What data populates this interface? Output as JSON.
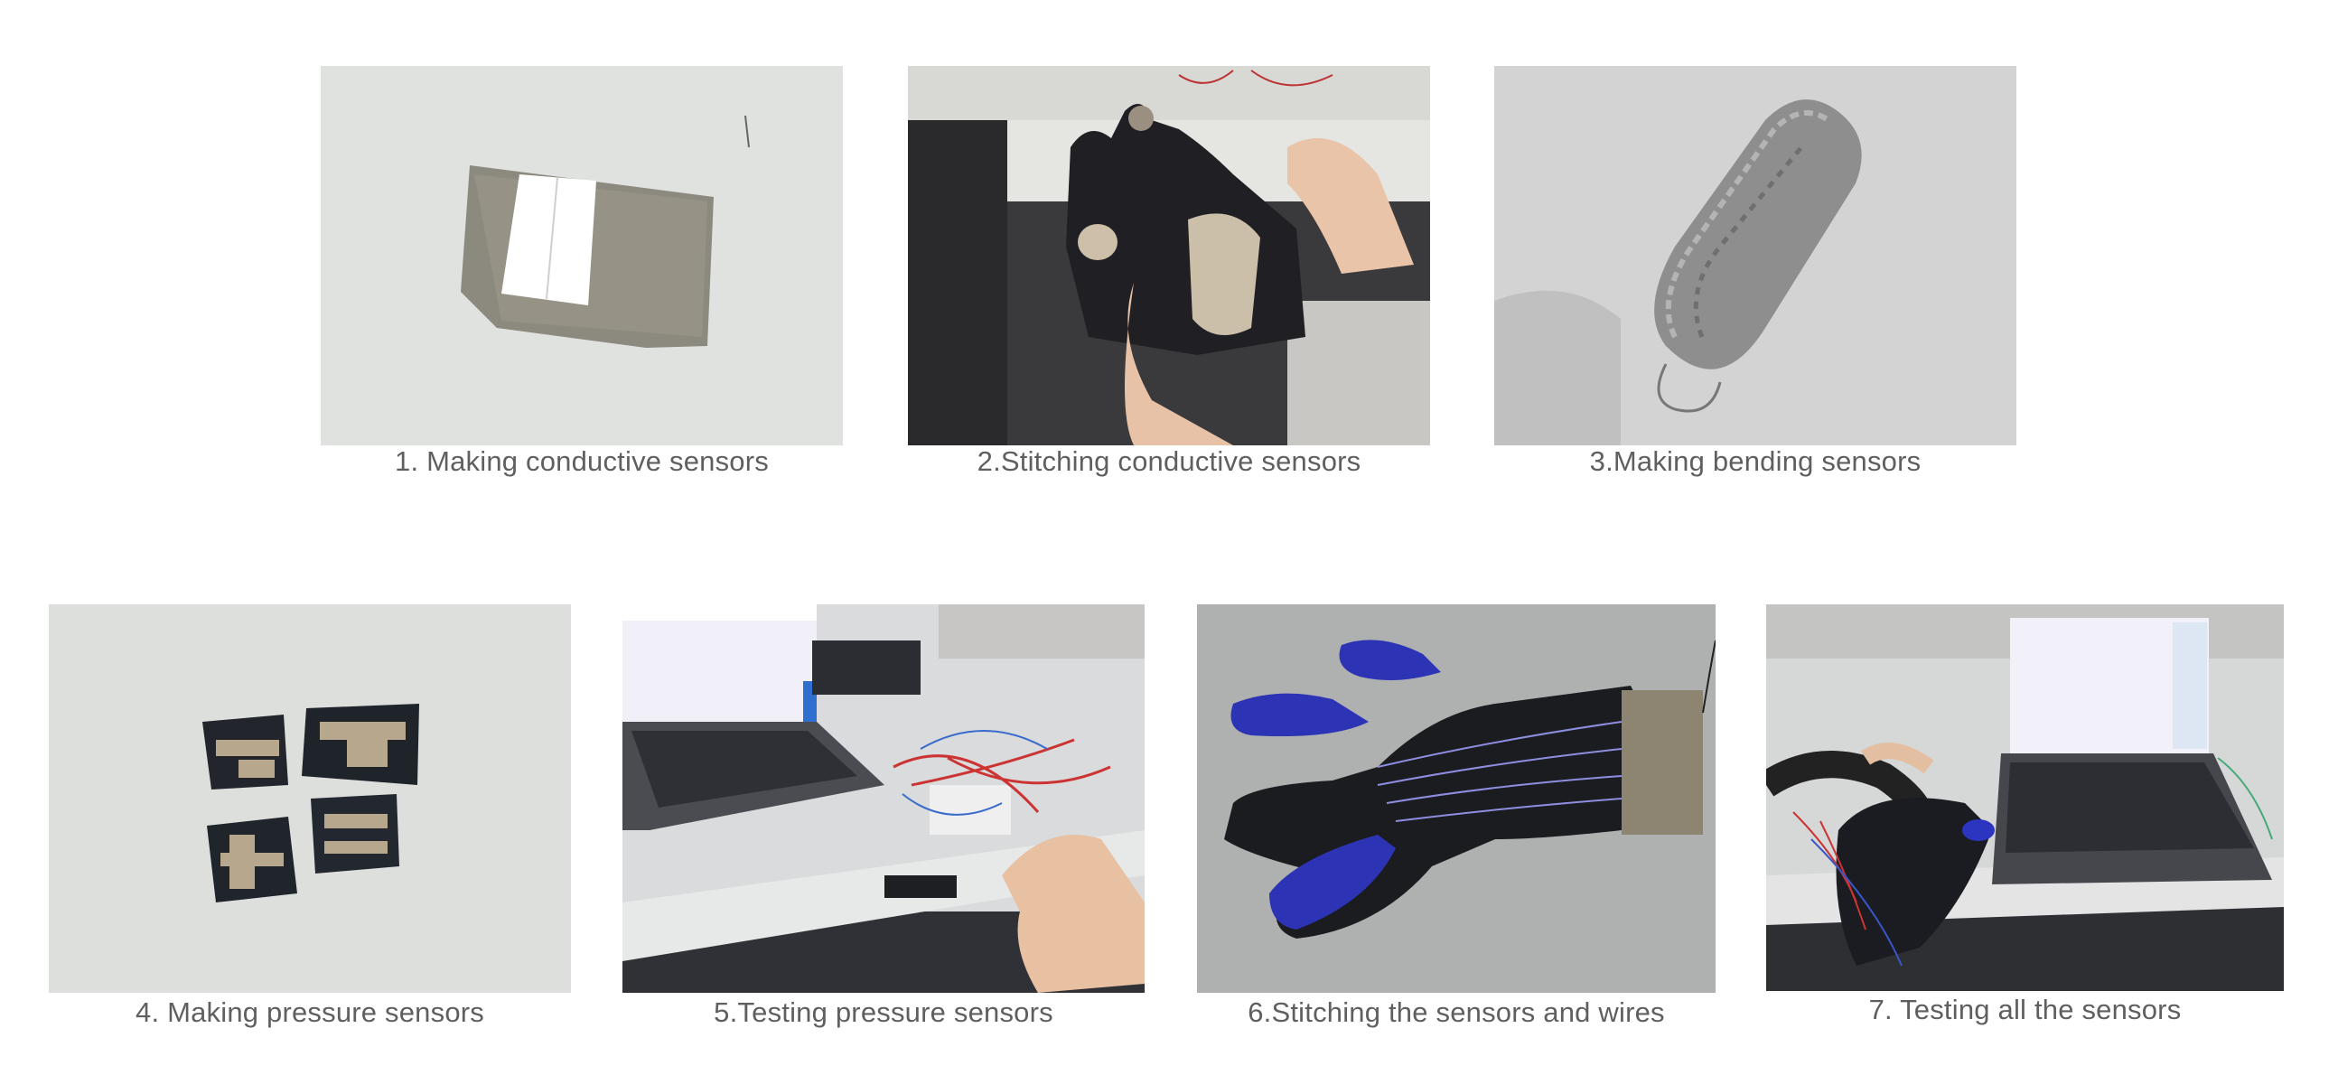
{
  "panels": [
    {
      "caption": "1. Making conductive sensors",
      "photo_icon": "conductive-fabric-photo-icon"
    },
    {
      "caption": "2.Stitching conductive sensors",
      "photo_icon": "stitching-glove-photo-icon"
    },
    {
      "caption": "3.Making bending sensors",
      "photo_icon": "knitted-tube-photo-icon"
    },
    {
      "caption": "4. Making pressure sensors",
      "photo_icon": "pressure-patches-photo-icon"
    },
    {
      "caption": "5.Testing pressure sensors",
      "photo_icon": "laptop-breadboard-photo-icon"
    },
    {
      "caption": "6.Stitching the sensors and wires",
      "photo_icon": "wired-glove-photo-icon"
    },
    {
      "caption": "7. Testing all the sensors",
      "photo_icon": "glove-laptop-photo-icon"
    }
  ]
}
